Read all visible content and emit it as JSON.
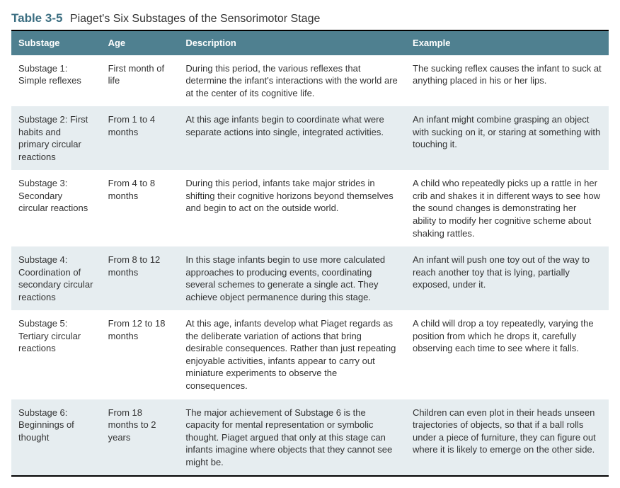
{
  "title": {
    "label": "Table 3-5",
    "text": "Piaget's Six Substages of the Sensorimotor Stage"
  },
  "colors": {
    "header_bg": "#4f8090",
    "header_text": "#ffffff",
    "row_odd_bg": "#ffffff",
    "row_even_bg": "#e6edf0",
    "label_color": "#3b6e81",
    "body_text": "#333333",
    "border_color": "#000000"
  },
  "columns": [
    "Substage",
    "Age",
    "Description",
    "Example"
  ],
  "rows": [
    {
      "substage": "Substage 1: Simple reflexes",
      "age": "First month of life",
      "description": "During this period, the various reflexes that determine the infant's interactions with the world are at the center of its cognitive life.",
      "example": "The sucking reflex causes the infant to suck at anything placed in his or her lips."
    },
    {
      "substage": "Substage 2: First habits and primary circular reactions",
      "age": "From 1 to 4 months",
      "description": "At this age infants begin to coordinate what were separate actions into single, integrated activities.",
      "example": "An infant might combine grasping an object with sucking on it, or staring at something with touching it."
    },
    {
      "substage": "Substage 3: Secondary circular reactions",
      "age": "From 4 to 8 months",
      "description": "During this period, infants take major strides in shifting their cognitive horizons beyond themselves and begin to act on the outside world.",
      "example": "A child who repeatedly picks up a rattle in her crib and shakes it in different ways to see how the sound changes is demonstrating her ability to modify her cognitive scheme about shaking rattles."
    },
    {
      "substage": "Substage 4: Coordination of secondary circular reactions",
      "age": "From 8 to 12 months",
      "description": "In this stage infants begin to use more calculated approaches to producing events, coordinating several schemes to generate a single act. They achieve object permanence during this stage.",
      "example": "An infant will push one toy out of the way to reach another toy that is lying, partially exposed, under it."
    },
    {
      "substage": "Substage 5: Tertiary circular reactions",
      "age": "From 12 to 18 months",
      "description": "At this age, infants develop what Piaget regards as the deliberate variation of actions that bring desirable consequences. Rather than just repeating enjoyable activities, infants appear to carry out miniature experiments to observe the consequences.",
      "example": "A child will drop a toy repeatedly, varying the position from which he drops it, carefully observing each time to see where it falls."
    },
    {
      "substage": "Substage 6: Beginnings of thought",
      "age": "From 18 months to 2 years",
      "description": "The major achievement of Substage 6 is the capacity for mental representation or symbolic thought. Piaget argued that only at this stage can infants imagine where objects that they cannot see might be.",
      "example": "Children can even plot in their heads unseen trajectories of objects, so that if a ball rolls under a piece of furniture, they can figure out where it is likely to emerge on the other side."
    }
  ]
}
